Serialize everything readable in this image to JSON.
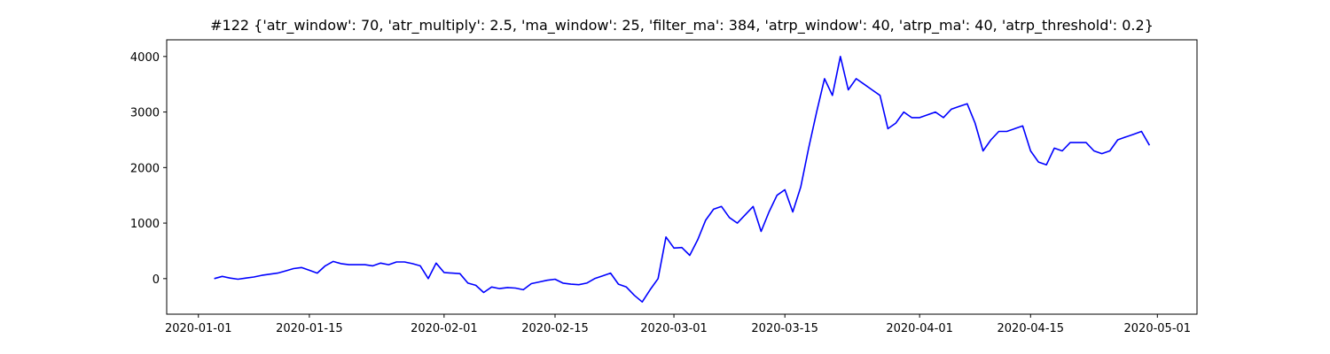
{
  "chart_data": {
    "type": "line",
    "title": "#122 {'atr_window': 70, 'atr_multiply': 2.5, 'ma_window': 25, 'filter_ma': 384, 'atrp_window': 40, 'atrp_ma': 40, 'atrp_threshold': 0.2}",
    "x": [
      "2020-01-03",
      "2020-01-04",
      "2020-01-05",
      "2020-01-06",
      "2020-01-07",
      "2020-01-08",
      "2020-01-09",
      "2020-01-10",
      "2020-01-11",
      "2020-01-12",
      "2020-01-13",
      "2020-01-14",
      "2020-01-15",
      "2020-01-16",
      "2020-01-17",
      "2020-01-18",
      "2020-01-19",
      "2020-01-20",
      "2020-01-21",
      "2020-01-22",
      "2020-01-23",
      "2020-01-24",
      "2020-01-25",
      "2020-01-26",
      "2020-01-27",
      "2020-01-28",
      "2020-01-29",
      "2020-01-30",
      "2020-01-31",
      "2020-02-01",
      "2020-02-02",
      "2020-02-03",
      "2020-02-04",
      "2020-02-05",
      "2020-02-06",
      "2020-02-07",
      "2020-02-08",
      "2020-02-09",
      "2020-02-10",
      "2020-02-11",
      "2020-02-12",
      "2020-02-13",
      "2020-02-14",
      "2020-02-15",
      "2020-02-16",
      "2020-02-17",
      "2020-02-18",
      "2020-02-19",
      "2020-02-20",
      "2020-02-21",
      "2020-02-22",
      "2020-02-23",
      "2020-02-24",
      "2020-02-25",
      "2020-02-26",
      "2020-02-27",
      "2020-02-28",
      "2020-02-29",
      "2020-03-01",
      "2020-03-02",
      "2020-03-03",
      "2020-03-04",
      "2020-03-05",
      "2020-03-06",
      "2020-03-07",
      "2020-03-08",
      "2020-03-09",
      "2020-03-10",
      "2020-03-11",
      "2020-03-12",
      "2020-03-13",
      "2020-03-14",
      "2020-03-15",
      "2020-03-16",
      "2020-03-17",
      "2020-03-18",
      "2020-03-19",
      "2020-03-20",
      "2020-03-21",
      "2020-03-22",
      "2020-03-23",
      "2020-03-24",
      "2020-03-25",
      "2020-03-26",
      "2020-03-27",
      "2020-03-28",
      "2020-03-29",
      "2020-03-30",
      "2020-03-31",
      "2020-04-01",
      "2020-04-02",
      "2020-04-03",
      "2020-04-04",
      "2020-04-05",
      "2020-04-06",
      "2020-04-07",
      "2020-04-08",
      "2020-04-09",
      "2020-04-10",
      "2020-04-11",
      "2020-04-12",
      "2020-04-13",
      "2020-04-14",
      "2020-04-15",
      "2020-04-16",
      "2020-04-17",
      "2020-04-18",
      "2020-04-19",
      "2020-04-20",
      "2020-04-21",
      "2020-04-22",
      "2020-04-23",
      "2020-04-24",
      "2020-04-25",
      "2020-04-26",
      "2020-04-27",
      "2020-04-28",
      "2020-04-29",
      "2020-04-30"
    ],
    "series": [
      {
        "color": "#0000ff",
        "values": [
          0,
          40,
          10,
          -10,
          10,
          30,
          60,
          80,
          100,
          140,
          180,
          200,
          150,
          100,
          230,
          310,
          270,
          250,
          250,
          250,
          230,
          280,
          250,
          300,
          300,
          270,
          230,
          0,
          280,
          110,
          100,
          90,
          -80,
          -120,
          -250,
          -150,
          -180,
          -160,
          -170,
          -200,
          -90,
          -60,
          -30,
          -10,
          -80,
          -100,
          -110,
          -80,
          0,
          50,
          100,
          -100,
          -150,
          -300,
          -420,
          -200,
          0,
          750,
          550,
          560,
          420,
          700,
          1050,
          1250,
          1300,
          1100,
          1000,
          1150,
          1300,
          850,
          1200,
          1500,
          1600,
          1200,
          1650,
          2350,
          3000,
          3600,
          3300,
          4000,
          3400,
          3600,
          3500,
          3400,
          3300,
          2700,
          2800,
          3000,
          2900,
          2900,
          2950,
          3000,
          2900,
          3050,
          3100,
          3150,
          2800,
          2300,
          2500,
          2650,
          2650,
          2700,
          2750,
          2300,
          2100,
          2050,
          2350,
          2300,
          2450,
          2450,
          2450,
          2300,
          2250,
          2300,
          2500,
          2550,
          2600,
          2650,
          2400
        ]
      }
    ],
    "xlim": [
      "2019-12-28",
      "2020-05-06"
    ],
    "xticks": [
      "2020-01-01",
      "2020-01-15",
      "2020-02-01",
      "2020-02-15",
      "2020-03-01",
      "2020-03-15",
      "2020-04-01",
      "2020-04-15",
      "2020-05-01"
    ],
    "ylim": [
      -640,
      4300
    ],
    "yticks": [
      0,
      1000,
      2000,
      3000,
      4000
    ]
  }
}
